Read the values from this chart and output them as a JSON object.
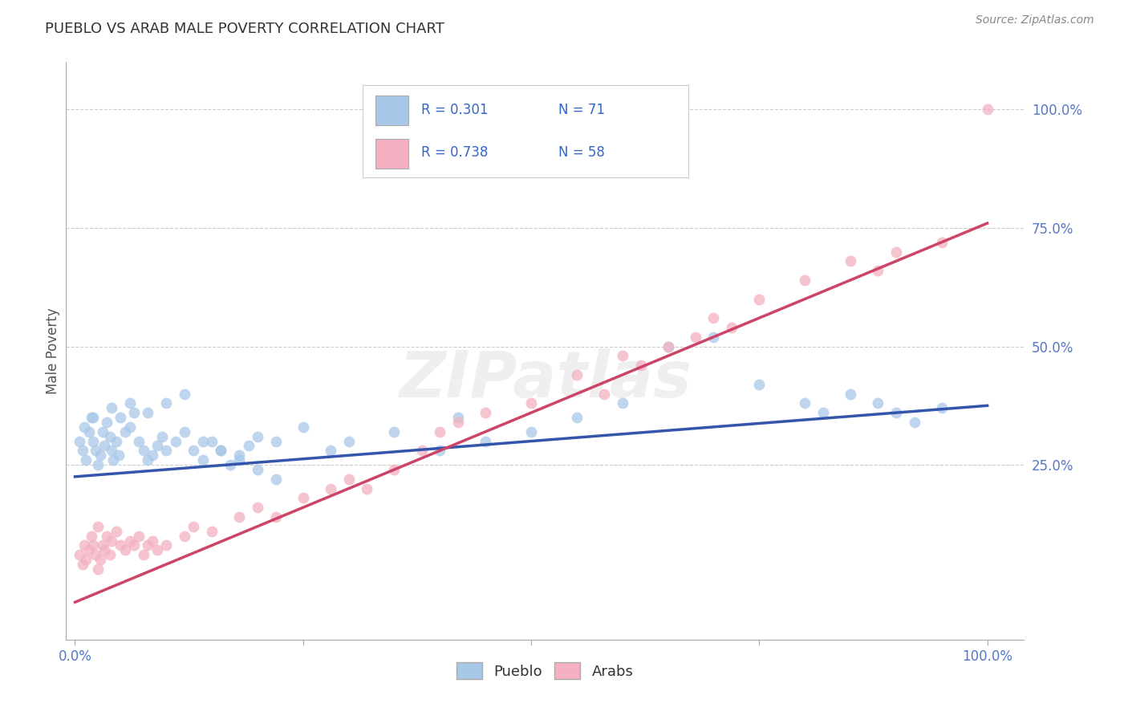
{
  "title": "PUEBLO VS ARAB MALE POVERTY CORRELATION CHART",
  "source": "Source: ZipAtlas.com",
  "ylabel": "Male Poverty",
  "pueblo_color": "#a8c8e8",
  "arab_color": "#f4b0c0",
  "pueblo_line_color": "#3355aa",
  "arab_line_color": "#cc4466",
  "legend_text_color": "#3366cc",
  "legend_R_pueblo": "R = 0.301",
  "legend_N_pueblo": "N = 71",
  "legend_R_arab": "R = 0.738",
  "legend_N_arab": "N = 58",
  "watermark": "ZIPatlas",
  "tick_color": "#5577cc",
  "pueblo_line_x0": 0.0,
  "pueblo_line_y0": 0.225,
  "pueblo_line_x1": 1.0,
  "pueblo_line_y1": 0.375,
  "arab_line_x0": 0.0,
  "arab_line_y0": -0.04,
  "arab_line_x1": 1.0,
  "arab_line_y1": 0.76,
  "xlim_min": -0.01,
  "xlim_max": 1.04,
  "ylim_min": -0.12,
  "ylim_max": 1.1,
  "y_ticks": [
    0.25,
    0.5,
    0.75,
    1.0
  ],
  "y_tick_labels": [
    "25.0%",
    "50.0%",
    "75.0%",
    "100.0%"
  ],
  "x_ticks": [
    0.0,
    0.25,
    0.5,
    0.75,
    1.0
  ],
  "x_tick_labels": [
    "0.0%",
    "",
    "",
    "",
    "100.0%"
  ],
  "pueblo_x": [
    0.005,
    0.008,
    0.01,
    0.012,
    0.015,
    0.018,
    0.02,
    0.022,
    0.025,
    0.028,
    0.03,
    0.032,
    0.035,
    0.038,
    0.04,
    0.042,
    0.045,
    0.048,
    0.05,
    0.055,
    0.06,
    0.065,
    0.07,
    0.075,
    0.08,
    0.085,
    0.09,
    0.095,
    0.1,
    0.11,
    0.12,
    0.13,
    0.14,
    0.15,
    0.16,
    0.17,
    0.18,
    0.19,
    0.2,
    0.22,
    0.25,
    0.28,
    0.3,
    0.35,
    0.4,
    0.42,
    0.45,
    0.5,
    0.55,
    0.6,
    0.65,
    0.7,
    0.75,
    0.8,
    0.82,
    0.85,
    0.88,
    0.9,
    0.92,
    0.95,
    0.02,
    0.04,
    0.06,
    0.08,
    0.1,
    0.12,
    0.14,
    0.16,
    0.18,
    0.2,
    0.22
  ],
  "pueblo_y": [
    0.3,
    0.28,
    0.33,
    0.26,
    0.32,
    0.35,
    0.3,
    0.28,
    0.25,
    0.27,
    0.32,
    0.29,
    0.34,
    0.31,
    0.28,
    0.26,
    0.3,
    0.27,
    0.35,
    0.32,
    0.38,
    0.36,
    0.3,
    0.28,
    0.26,
    0.27,
    0.29,
    0.31,
    0.28,
    0.3,
    0.32,
    0.28,
    0.26,
    0.3,
    0.28,
    0.25,
    0.27,
    0.29,
    0.31,
    0.3,
    0.33,
    0.28,
    0.3,
    0.32,
    0.28,
    0.35,
    0.3,
    0.32,
    0.35,
    0.38,
    0.5,
    0.52,
    0.42,
    0.38,
    0.36,
    0.4,
    0.38,
    0.36,
    0.34,
    0.37,
    0.35,
    0.37,
    0.33,
    0.36,
    0.38,
    0.4,
    0.3,
    0.28,
    0.26,
    0.24,
    0.22
  ],
  "arab_x": [
    0.005,
    0.008,
    0.01,
    0.012,
    0.015,
    0.018,
    0.02,
    0.022,
    0.025,
    0.028,
    0.03,
    0.032,
    0.035,
    0.038,
    0.04,
    0.045,
    0.05,
    0.055,
    0.06,
    0.065,
    0.07,
    0.075,
    0.08,
    0.085,
    0.09,
    0.1,
    0.12,
    0.13,
    0.15,
    0.18,
    0.2,
    0.22,
    0.25,
    0.28,
    0.3,
    0.32,
    0.35,
    0.38,
    0.4,
    0.42,
    0.45,
    0.5,
    0.55,
    0.58,
    0.6,
    0.62,
    0.65,
    0.68,
    0.7,
    0.72,
    0.75,
    0.8,
    0.85,
    0.88,
    0.9,
    0.95,
    1.0,
    0.025
  ],
  "arab_y": [
    0.06,
    0.04,
    0.08,
    0.05,
    0.07,
    0.1,
    0.08,
    0.06,
    0.12,
    0.05,
    0.08,
    0.07,
    0.1,
    0.06,
    0.09,
    0.11,
    0.08,
    0.07,
    0.09,
    0.08,
    0.1,
    0.06,
    0.08,
    0.09,
    0.07,
    0.08,
    0.1,
    0.12,
    0.11,
    0.14,
    0.16,
    0.14,
    0.18,
    0.2,
    0.22,
    0.2,
    0.24,
    0.28,
    0.32,
    0.34,
    0.36,
    0.38,
    0.44,
    0.4,
    0.48,
    0.46,
    0.5,
    0.52,
    0.56,
    0.54,
    0.6,
    0.64,
    0.68,
    0.66,
    0.7,
    0.72,
    1.0,
    0.03
  ]
}
